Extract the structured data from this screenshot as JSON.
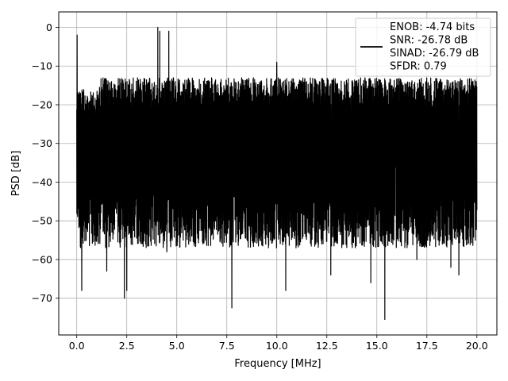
{
  "chart_data": {
    "type": "line",
    "title": "",
    "xlabel": "Frequency [MHz]",
    "ylabel": "PSD [dB]",
    "xlim": [
      -0.9,
      21.0
    ],
    "ylim": [
      -79.5,
      4.0
    ],
    "x_ticks": [
      0.0,
      2.5,
      5.0,
      7.5,
      10.0,
      12.5,
      15.0,
      17.5,
      20.0
    ],
    "x_tick_labels": [
      "0.0",
      "2.5",
      "5.0",
      "7.5",
      "10.0",
      "12.5",
      "15.0",
      "17.5",
      "20.0"
    ],
    "y_ticks": [
      0,
      -10,
      -20,
      -30,
      -40,
      -50,
      -60,
      -70
    ],
    "y_tick_labels": [
      "0",
      "−10",
      "−20",
      "−30",
      "−40",
      "−50",
      "−60",
      "−70"
    ],
    "grid": true,
    "legend_position": "top-right",
    "legend_lines": [
      "ENOB: -4.74 bits",
      "SNR: -26.78 dB",
      "SINAD: -26.79 dB",
      "SFDR: 0.79"
    ],
    "line_color": "#000000",
    "series": [
      {
        "x_range": [
          0.0,
          20.0
        ],
        "noise_band": {
          "floor_low": -55,
          "floor_high": -13,
          "mean": -33
        },
        "spikes": [
          {
            "x": 0.02,
            "y": -2
          },
          {
            "x": 4.05,
            "y": 0
          },
          {
            "x": 4.15,
            "y": -1
          },
          {
            "x": 4.6,
            "y": -1
          },
          {
            "x": 10.0,
            "y": -9
          },
          {
            "x": 2.38,
            "y": -70
          },
          {
            "x": 2.5,
            "y": -68
          },
          {
            "x": 0.25,
            "y": -68
          },
          {
            "x": 7.75,
            "y": -72.5
          },
          {
            "x": 15.4,
            "y": -75.5
          },
          {
            "x": 10.45,
            "y": -68
          },
          {
            "x": 14.7,
            "y": -66
          },
          {
            "x": 1.5,
            "y": -63
          },
          {
            "x": 4.5,
            "y": -58
          },
          {
            "x": 12.7,
            "y": -64
          },
          {
            "x": 18.7,
            "y": -62
          },
          {
            "x": 17.0,
            "y": -60
          },
          {
            "x": 19.1,
            "y": -64
          }
        ]
      }
    ]
  }
}
